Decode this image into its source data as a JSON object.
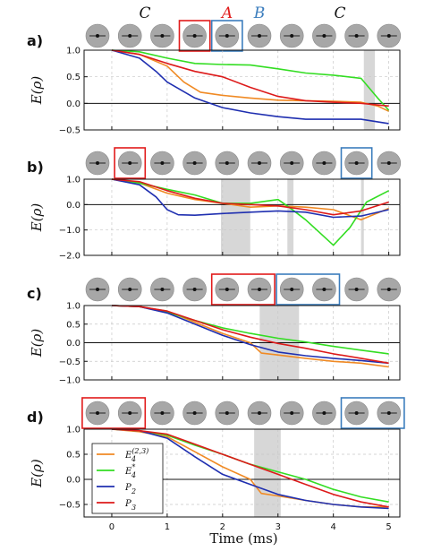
{
  "colors": {
    "orange": "#f08a24",
    "green": "#33dd22",
    "navy": "#1f2fb0",
    "red": "#dd1a1a",
    "box_red": "#e11b1b",
    "box_blue": "#3b7dbd",
    "shade": "#d7d7d7",
    "icon_fill": "#a7a7a7"
  },
  "top_labels": [
    {
      "text": "C",
      "color": "#111111"
    },
    {
      "text": "A",
      "color": "#e11b1b"
    },
    {
      "text": "B",
      "color": "#3b7dbd"
    },
    {
      "text": "C",
      "color": "#111111"
    }
  ],
  "xlabel": "Time (ms)",
  "ylabel": "E(ρ)",
  "chart_data": [
    {
      "type": "line",
      "panel": "a)",
      "xlim": [
        -0.5,
        5.2
      ],
      "ylim": [
        -0.5,
        1.0
      ],
      "yticks": [
        "1.0",
        "0.5",
        "0.0",
        "−0.5"
      ],
      "xticks": [],
      "shaded": [
        [
          4.55,
          4.75
        ]
      ],
      "boxes": [
        {
          "start": 3,
          "count": 1,
          "color": "red"
        },
        {
          "start": 4,
          "count": 1,
          "color": "blue"
        }
      ],
      "series": [
        {
          "color": "orange",
          "x": [
            0,
            0.5,
            1,
            1.3,
            1.6,
            2,
            2.5,
            3,
            3.5,
            4,
            4.5,
            4.8,
            5
          ],
          "y": [
            1,
            0.92,
            0.7,
            0.4,
            0.21,
            0.15,
            0.1,
            0.06,
            0.05,
            0.04,
            0.02,
            -0.05,
            -0.15
          ]
        },
        {
          "color": "green",
          "x": [
            0,
            0.5,
            1,
            1.5,
            2,
            2.5,
            3,
            3.5,
            4,
            4.5,
            4.8,
            5
          ],
          "y": [
            1,
            0.97,
            0.85,
            0.75,
            0.73,
            0.72,
            0.65,
            0.57,
            0.53,
            0.47,
            0.1,
            -0.13
          ]
        },
        {
          "color": "navy",
          "x": [
            0,
            0.5,
            0.8,
            1,
            1.5,
            2,
            2.5,
            3,
            3.5,
            4,
            4.5,
            5
          ],
          "y": [
            1,
            0.85,
            0.6,
            0.4,
            0.1,
            -0.08,
            -0.18,
            -0.25,
            -0.3,
            -0.3,
            -0.3,
            -0.38
          ]
        },
        {
          "color": "red",
          "x": [
            0,
            0.5,
            1,
            1.5,
            2,
            2.5,
            3,
            3.5,
            4,
            4.5,
            5
          ],
          "y": [
            1,
            0.92,
            0.75,
            0.6,
            0.5,
            0.3,
            0.13,
            0.05,
            0.02,
            0.0,
            -0.05
          ]
        }
      ]
    },
    {
      "type": "line",
      "panel": "b)",
      "xlim": [
        -0.5,
        5.2
      ],
      "ylim": [
        -2.0,
        1.0
      ],
      "yticks": [
        "1.0",
        "0.0",
        "−1.0",
        "−2.0"
      ],
      "xticks": [],
      "shaded": [
        [
          1.97,
          2.5
        ],
        [
          3.17,
          3.28
        ],
        [
          4.5,
          4.55
        ]
      ],
      "boxes": [
        {
          "start": 1,
          "count": 1,
          "color": "red"
        },
        {
          "start": 8,
          "count": 1,
          "color": "blue"
        }
      ],
      "series": [
        {
          "color": "orange",
          "x": [
            0,
            0.5,
            1,
            1.5,
            2,
            2.5,
            3,
            3.5,
            4,
            4.5,
            5
          ],
          "y": [
            1,
            0.85,
            0.45,
            0.2,
            0.05,
            -0.1,
            -0.05,
            -0.1,
            -0.2,
            -0.6,
            -0.15
          ]
        },
        {
          "color": "green",
          "x": [
            0,
            0.5,
            1,
            1.5,
            2,
            2.5,
            3,
            3.2,
            3.5,
            3.8,
            4,
            4.3,
            4.6,
            5
          ],
          "y": [
            1,
            0.85,
            0.6,
            0.38,
            0.05,
            0.05,
            0.2,
            -0.1,
            -0.6,
            -1.2,
            -1.6,
            -0.9,
            0.1,
            0.55
          ]
        },
        {
          "color": "navy",
          "x": [
            0,
            0.5,
            0.8,
            1,
            1.2,
            1.5,
            2,
            2.5,
            3,
            3.5,
            4,
            4.5,
            5
          ],
          "y": [
            1,
            0.78,
            0.3,
            -0.2,
            -0.4,
            -0.42,
            -0.35,
            -0.3,
            -0.25,
            -0.3,
            -0.5,
            -0.45,
            -0.2
          ]
        },
        {
          "color": "red",
          "x": [
            0,
            0.5,
            1,
            1.5,
            2,
            2.5,
            3,
            3.5,
            4,
            4.5,
            5
          ],
          "y": [
            1,
            0.9,
            0.55,
            0.25,
            0.05,
            0.0,
            -0.05,
            -0.2,
            -0.4,
            -0.25,
            0.1
          ]
        }
      ]
    },
    {
      "type": "line",
      "panel": "c)",
      "xlim": [
        -0.5,
        5.2
      ],
      "ylim": [
        -1.0,
        1.0
      ],
      "yticks": [
        "1.0",
        "0.5",
        "0.0",
        "−0.5",
        "−1.0"
      ],
      "xticks": [],
      "shaded": [
        [
          2.67,
          3.38
        ]
      ],
      "boxes": [
        {
          "start": 4,
          "count": 2,
          "color": "red"
        },
        {
          "start": 6,
          "count": 2,
          "color": "blue"
        }
      ],
      "series": [
        {
          "color": "orange",
          "x": [
            0,
            0.5,
            1,
            1.5,
            2,
            2.5,
            2.7,
            3,
            3.5,
            4,
            4.5,
            5
          ],
          "y": [
            1,
            0.97,
            0.85,
            0.55,
            0.25,
            0.0,
            -0.28,
            -0.33,
            -0.42,
            -0.5,
            -0.55,
            -0.65
          ]
        },
        {
          "color": "green",
          "x": [
            0,
            0.5,
            1,
            1.5,
            2,
            2.5,
            3,
            3.5,
            4,
            4.5,
            5
          ],
          "y": [
            1,
            0.97,
            0.82,
            0.6,
            0.4,
            0.25,
            0.12,
            0.02,
            -0.1,
            -0.2,
            -0.3
          ]
        },
        {
          "color": "navy",
          "x": [
            0,
            0.5,
            1,
            1.5,
            2,
            2.5,
            3,
            3.5,
            4,
            4.5,
            5
          ],
          "y": [
            1,
            0.97,
            0.8,
            0.5,
            0.2,
            -0.05,
            -0.25,
            -0.35,
            -0.42,
            -0.48,
            -0.55
          ]
        },
        {
          "color": "red",
          "x": [
            0,
            0.5,
            1,
            1.5,
            2,
            2.5,
            3,
            3.5,
            4,
            4.5,
            5
          ],
          "y": [
            1,
            0.97,
            0.85,
            0.6,
            0.35,
            0.15,
            -0.02,
            -0.15,
            -0.3,
            -0.42,
            -0.55
          ]
        }
      ]
    },
    {
      "type": "line",
      "panel": "d)",
      "xlim": [
        -0.5,
        5.2
      ],
      "ylim": [
        -0.75,
        1.0
      ],
      "yticks": [
        "1.0",
        "0.5",
        "0.0",
        "−0.5"
      ],
      "xticks": [
        "0",
        "1",
        "2",
        "3",
        "4",
        "5"
      ],
      "shaded": [
        [
          2.57,
          3.05
        ]
      ],
      "boxes": [
        {
          "start": 0,
          "count": 2,
          "color": "red"
        },
        {
          "start": 8,
          "count": 2,
          "color": "blue"
        }
      ],
      "series": [
        {
          "color": "orange",
          "x": [
            0,
            0.5,
            1,
            1.5,
            2,
            2.5,
            2.7,
            3,
            3.5,
            4,
            4.5,
            5
          ],
          "y": [
            1,
            0.95,
            0.85,
            0.55,
            0.25,
            0.0,
            -0.28,
            -0.33,
            -0.42,
            -0.5,
            -0.55,
            -0.55
          ]
        },
        {
          "color": "green",
          "x": [
            0,
            0.5,
            1,
            1.5,
            2,
            2.5,
            3,
            3.5,
            4,
            4.5,
            5
          ],
          "y": [
            1,
            0.97,
            0.88,
            0.68,
            0.5,
            0.3,
            0.15,
            0.0,
            -0.2,
            -0.35,
            -0.45
          ]
        },
        {
          "color": "navy",
          "x": [
            0,
            0.5,
            1,
            1.5,
            2,
            2.5,
            3,
            3.5,
            4,
            4.5,
            5
          ],
          "y": [
            1,
            0.97,
            0.82,
            0.45,
            0.1,
            -0.1,
            -0.3,
            -0.42,
            -0.5,
            -0.55,
            -0.58
          ]
        },
        {
          "color": "red",
          "x": [
            0,
            0.5,
            1,
            1.5,
            2,
            2.5,
            3,
            3.5,
            4,
            4.5,
            5
          ],
          "y": [
            1,
            0.97,
            0.9,
            0.7,
            0.5,
            0.3,
            0.1,
            -0.1,
            -0.3,
            -0.45,
            -0.55
          ]
        }
      ]
    }
  ],
  "legend": [
    {
      "label": "E",
      "sub": "4",
      "sup": "(2,3)",
      "color": "orange"
    },
    {
      "label": "E",
      "sub": "4",
      "sup": "*",
      "color": "green"
    },
    {
      "label": "P",
      "sub": "2",
      "sup": "",
      "color": "navy"
    },
    {
      "label": "P",
      "sub": "3",
      "sup": "",
      "color": "red"
    }
  ]
}
